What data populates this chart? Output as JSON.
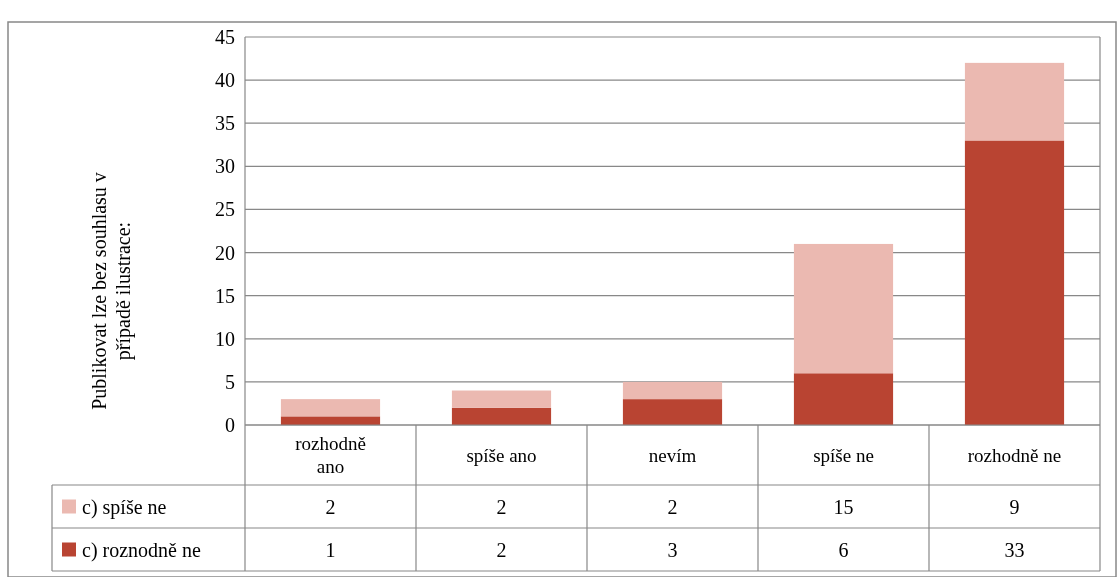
{
  "chart_data": {
    "type": "bar",
    "stacked": true,
    "ylabel": "Publikovat lze bez souhlasu v případě ilustrace:",
    "categories": [
      "rozhodně ano",
      "spíše ano",
      "nevím",
      "spíše ne",
      "rozhodně ne"
    ],
    "series": [
      {
        "name": "c) roznodně ne",
        "color": "#b94432",
        "values": [
          1,
          2,
          3,
          6,
          33
        ]
      },
      {
        "name": "c) spíše ne",
        "color": "#ebb9b1",
        "values": [
          2,
          2,
          2,
          15,
          9
        ]
      }
    ],
    "ylim": [
      0,
      45
    ],
    "yticks": [
      0,
      5,
      10,
      15,
      20,
      25,
      30,
      35,
      40,
      45
    ],
    "grid": "y",
    "data_labels": true,
    "legend": "bottom"
  }
}
